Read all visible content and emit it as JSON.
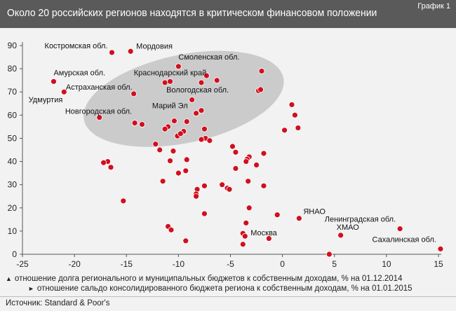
{
  "header": {
    "title": "Около 20 российских регионов находятся в критическом финансовом положении",
    "figure_label": "График 1"
  },
  "legend": {
    "x_description": "отношение долга регионального и муниципальных бюджетов к собственным доходам, % на 01.12.2014",
    "y_description": "отношение сальдо консолидированного бюджета региона к собственным доходам, % на 01.01.2015"
  },
  "source": "Источник: Standard & Poor's",
  "colors": {
    "point": "#d0101e",
    "point_stroke": "#ffffff",
    "ellipse": "#c4c4c4",
    "axis": "#555555",
    "header": "#5a5a5a"
  },
  "chart_data": {
    "type": "scatter",
    "xlim": [
      -25,
      15
    ],
    "ylim": [
      0,
      90
    ],
    "xticks": [
      -25,
      -20,
      -15,
      -10,
      -5,
      0,
      5,
      10,
      15
    ],
    "yticks": [
      0,
      10,
      20,
      30,
      40,
      50,
      60,
      70,
      80,
      90
    ],
    "grid": false,
    "highlight_ellipse": {
      "cx": -9.5,
      "cy": 67,
      "rx": 9.8,
      "ry": 19
    },
    "labels": [
      {
        "text": "Костромская обл.",
        "x": -16.4,
        "y": 87
      },
      {
        "text": "Мордовия",
        "x": -14.6,
        "y": 87.5
      },
      {
        "text": "Смоленская обл.",
        "x": -10,
        "y": 81
      },
      {
        "text": "Амурская обл.",
        "x": -22,
        "y": 74.5
      },
      {
        "text": "Краснодарский край",
        "x": -10.8,
        "y": 74.5
      },
      {
        "text": "Астраханская обл.",
        "x": -14.3,
        "y": 69.2
      },
      {
        "text": "Вологодская обл.",
        "x": -11.3,
        "y": 74
      },
      {
        "text": "Удмуртия",
        "x": -21,
        "y": 70
      },
      {
        "text": "Марий Эл",
        "x": -8.7,
        "y": 66.6
      },
      {
        "text": "Новгородская обл.",
        "x": -14.2,
        "y": 56.6
      },
      {
        "text": "ЯНАО",
        "x": 1.6,
        "y": 15.5
      },
      {
        "text": "ХМАО",
        "x": 5.6,
        "y": 8.2
      },
      {
        "text": "Москва",
        "x": -3.6,
        "y": 7.8
      },
      {
        "text": "Ленинградская обл.",
        "x": 11.3,
        "y": 11
      },
      {
        "text": "Сахалинская обл.",
        "x": 15.2,
        "y": 2.3
      }
    ],
    "points": [
      {
        "x": -16.4,
        "y": 87
      },
      {
        "x": -14.6,
        "y": 87.5
      },
      {
        "x": -10,
        "y": 81
      },
      {
        "x": -22,
        "y": 74.5
      },
      {
        "x": -21,
        "y": 70
      },
      {
        "x": -14.3,
        "y": 69.2
      },
      {
        "x": -11.3,
        "y": 74
      },
      {
        "x": -10.8,
        "y": 74.5
      },
      {
        "x": -7.3,
        "y": 77
      },
      {
        "x": -6.3,
        "y": 75
      },
      {
        "x": -7.8,
        "y": 74
      },
      {
        "x": -2,
        "y": 79
      },
      {
        "x": -2.3,
        "y": 70.5
      },
      {
        "x": -2.1,
        "y": 71
      },
      {
        "x": -8.7,
        "y": 66.6
      },
      {
        "x": -8.3,
        "y": 60.8
      },
      {
        "x": -7.8,
        "y": 62
      },
      {
        "x": -10.4,
        "y": 57.5
      },
      {
        "x": -11,
        "y": 55
      },
      {
        "x": -11.3,
        "y": 54
      },
      {
        "x": -9.2,
        "y": 57.2
      },
      {
        "x": -9.5,
        "y": 53
      },
      {
        "x": -10.1,
        "y": 51
      },
      {
        "x": -9.8,
        "y": 52
      },
      {
        "x": -14.2,
        "y": 56.6
      },
      {
        "x": -13.5,
        "y": 56
      },
      {
        "x": -17.6,
        "y": 59
      },
      {
        "x": -7.5,
        "y": 54
      },
      {
        "x": -7.4,
        "y": 50
      },
      {
        "x": -7.8,
        "y": 49.5
      },
      {
        "x": -7,
        "y": 49
      },
      {
        "x": -4.8,
        "y": 46.5
      },
      {
        "x": -4.5,
        "y": 44
      },
      {
        "x": -12.2,
        "y": 47.5
      },
      {
        "x": -11.8,
        "y": 45
      },
      {
        "x": -10.5,
        "y": 44.5
      },
      {
        "x": 0.9,
        "y": 64.5
      },
      {
        "x": 1.2,
        "y": 60
      },
      {
        "x": 1.5,
        "y": 54.5
      },
      {
        "x": 0.2,
        "y": 53.5
      },
      {
        "x": -3.2,
        "y": 42
      },
      {
        "x": -3.4,
        "y": 41
      },
      {
        "x": -3.5,
        "y": 40
      },
      {
        "x": -1.8,
        "y": 43.5
      },
      {
        "x": -2.5,
        "y": 38.5
      },
      {
        "x": -4.5,
        "y": 37
      },
      {
        "x": -9.2,
        "y": 40.8
      },
      {
        "x": -10.8,
        "y": 40.3
      },
      {
        "x": -10,
        "y": 35
      },
      {
        "x": -9.3,
        "y": 36
      },
      {
        "x": -11.5,
        "y": 31.5
      },
      {
        "x": -16.8,
        "y": 40
      },
      {
        "x": -17.2,
        "y": 39.5
      },
      {
        "x": -16.5,
        "y": 37.5
      },
      {
        "x": -15.3,
        "y": 23
      },
      {
        "x": -8.2,
        "y": 28
      },
      {
        "x": -8.3,
        "y": 26
      },
      {
        "x": -7.5,
        "y": 29.5
      },
      {
        "x": -5.8,
        "y": 30
      },
      {
        "x": -5.3,
        "y": 28.5
      },
      {
        "x": -5.1,
        "y": 28
      },
      {
        "x": -3.3,
        "y": 31.5
      },
      {
        "x": -1.8,
        "y": 29.5
      },
      {
        "x": -8.3,
        "y": 25
      },
      {
        "x": -7.5,
        "y": 17.5
      },
      {
        "x": -3.2,
        "y": 20
      },
      {
        "x": -3.5,
        "y": 13.5
      },
      {
        "x": -0.5,
        "y": 17
      },
      {
        "x": 1.6,
        "y": 15.5
      },
      {
        "x": -11,
        "y": 12
      },
      {
        "x": -10.7,
        "y": 10.5
      },
      {
        "x": -9.3,
        "y": 5.8
      },
      {
        "x": -3.8,
        "y": 9
      },
      {
        "x": -3.6,
        "y": 7.8
      },
      {
        "x": -3.8,
        "y": 4.3
      },
      {
        "x": -1.3,
        "y": 6.8
      },
      {
        "x": 5.6,
        "y": 8.2
      },
      {
        "x": 4.5,
        "y": 0
      },
      {
        "x": 11.3,
        "y": 11
      },
      {
        "x": 15.2,
        "y": 2.3
      }
    ]
  }
}
